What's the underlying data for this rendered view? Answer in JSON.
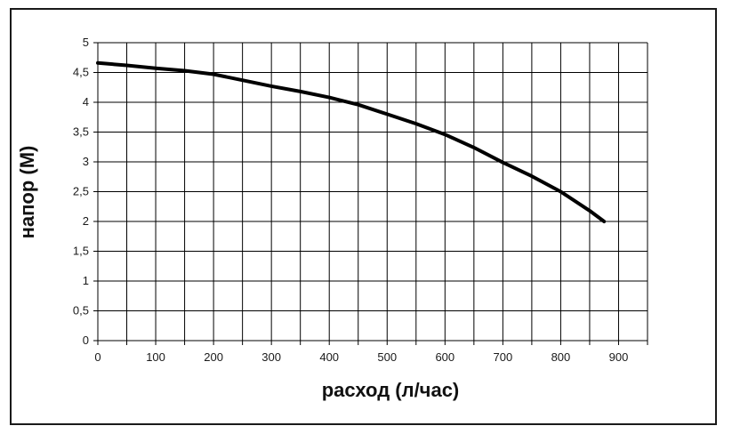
{
  "chart_data": {
    "type": "line",
    "title": "",
    "xlabel": "расход (л/час)",
    "ylabel": "напор (М)",
    "xlim": [
      0,
      950
    ],
    "ylim": [
      0,
      5
    ],
    "x_ticks": [
      "0",
      "100",
      "200",
      "300",
      "400",
      "500",
      "600",
      "700",
      "800",
      "900"
    ],
    "y_ticks": [
      "0",
      "0,5",
      "1",
      "1,5",
      "2",
      "2,5",
      "3",
      "3,5",
      "4",
      "4,5",
      "5"
    ],
    "grid": true,
    "series": [
      {
        "x": [
          0,
          50,
          100,
          150,
          200,
          250,
          300,
          350,
          400,
          450,
          500,
          550,
          600,
          650,
          700,
          750,
          800,
          850,
          875
        ],
        "y": [
          4.66,
          4.62,
          4.57,
          4.53,
          4.47,
          4.37,
          4.27,
          4.18,
          4.08,
          3.96,
          3.8,
          3.64,
          3.46,
          3.24,
          2.99,
          2.76,
          2.5,
          2.18,
          2.0
        ]
      }
    ],
    "colors": {
      "line": "#000000",
      "grid": "#000000"
    }
  }
}
